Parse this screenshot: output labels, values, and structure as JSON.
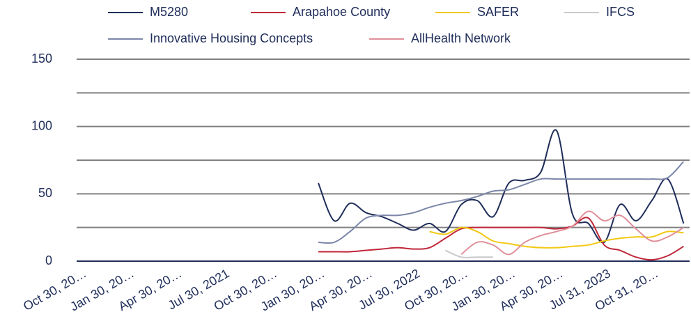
{
  "chart_data": {
    "type": "line",
    "categories": [
      "Oct 30, 20…",
      null,
      null,
      "Jan 30, 20…",
      null,
      null,
      "Apr 30, 20…",
      null,
      null,
      "Jul 30, 2021",
      null,
      null,
      "Oct 30, 20…",
      null,
      null,
      "Jan 30, 20…",
      null,
      null,
      "Apr 30, 20…",
      null,
      null,
      "Jul 30, 2022",
      null,
      null,
      "Oct 30, 20…",
      null,
      null,
      "Jan 30, 20…",
      null,
      null,
      "Apr 30, 20…",
      null,
      null,
      "Jul 31, 2023",
      null,
      null,
      "Oct 31, 20…",
      null,
      null
    ],
    "series": [
      {
        "name": "M5280",
        "color": "#1f2d5a",
        "values": [
          null,
          null,
          null,
          null,
          null,
          null,
          null,
          null,
          null,
          null,
          null,
          null,
          null,
          null,
          null,
          58,
          30,
          43,
          36,
          33,
          28,
          23,
          28,
          22,
          42,
          45,
          33,
          58,
          60,
          66,
          97,
          35,
          28,
          14,
          42,
          30,
          45,
          61,
          28
        ]
      },
      {
        "name": "Arapahoe County",
        "color": "#c0273a",
        "values": [
          null,
          null,
          null,
          null,
          null,
          null,
          null,
          null,
          null,
          null,
          null,
          null,
          null,
          null,
          null,
          7,
          7,
          7,
          8,
          9,
          10,
          9,
          10,
          17,
          24,
          25,
          25,
          25,
          25,
          25,
          24,
          26,
          32,
          12,
          8,
          3,
          1,
          4,
          11
        ]
      },
      {
        "name": "SAFER",
        "color": "#f2c811",
        "values": [
          null,
          null,
          null,
          null,
          null,
          null,
          null,
          null,
          null,
          null,
          null,
          null,
          null,
          null,
          null,
          null,
          null,
          null,
          null,
          null,
          null,
          null,
          22,
          20,
          25,
          22,
          15,
          13,
          11,
          10,
          10,
          11,
          12,
          15,
          17,
          18,
          18,
          22,
          21
        ]
      },
      {
        "name": "IFCS",
        "color": "#c8c8cc",
        "values": [
          null,
          null,
          null,
          null,
          null,
          null,
          null,
          null,
          null,
          null,
          null,
          null,
          null,
          null,
          null,
          null,
          null,
          null,
          null,
          null,
          null,
          null,
          null,
          8,
          3,
          3,
          3,
          null,
          null,
          null,
          null,
          null,
          null,
          null,
          null,
          null,
          null,
          null,
          null
        ]
      },
      {
        "name": "Innovative Housing Concepts",
        "color": "#7b86a8",
        "values": [
          null,
          null,
          null,
          null,
          null,
          null,
          null,
          null,
          null,
          null,
          null,
          null,
          null,
          null,
          null,
          14,
          14,
          22,
          32,
          34,
          34,
          36,
          40,
          43,
          45,
          48,
          52,
          53,
          57,
          61,
          61,
          61,
          61,
          61,
          61,
          61,
          61,
          62,
          74
        ]
      },
      {
        "name": "AllHealth Network",
        "color": "#e08f9a",
        "values": [
          null,
          null,
          null,
          null,
          null,
          null,
          null,
          null,
          null,
          null,
          null,
          null,
          null,
          null,
          null,
          null,
          null,
          null,
          null,
          null,
          null,
          null,
          null,
          null,
          5,
          14,
          12,
          5,
          14,
          19,
          22,
          26,
          37,
          30,
          34,
          24,
          15,
          18,
          25
        ]
      }
    ],
    "ylim": [
      0,
      150
    ],
    "yticks": [
      0,
      50,
      100,
      150
    ],
    "minor_yticks": [
      25,
      75,
      125
    ],
    "grid": true
  }
}
